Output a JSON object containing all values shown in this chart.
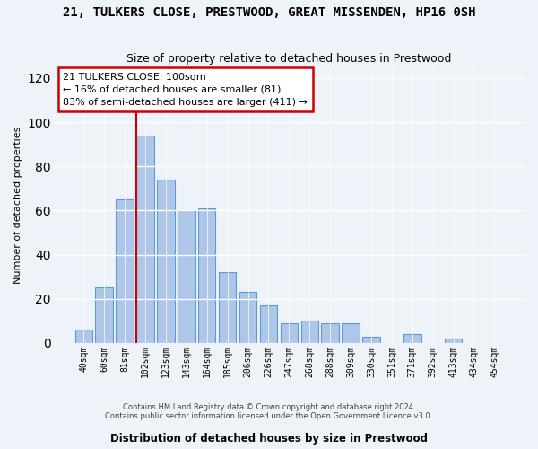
{
  "title": "21, TULKERS CLOSE, PRESTWOOD, GREAT MISSENDEN, HP16 0SH",
  "subtitle": "Size of property relative to detached houses in Prestwood",
  "xlabel": "Distribution of detached houses by size in Prestwood",
  "ylabel": "Number of detached properties",
  "bar_color": "#aec6e8",
  "bar_edge_color": "#5b9bd5",
  "background_color": "#eef2f9",
  "grid_color": "white",
  "categories": [
    "40sqm",
    "60sqm",
    "81sqm",
    "102sqm",
    "123sqm",
    "143sqm",
    "164sqm",
    "185sqm",
    "206sqm",
    "226sqm",
    "247sqm",
    "268sqm",
    "288sqm",
    "309sqm",
    "330sqm",
    "351sqm",
    "371sqm",
    "392sqm",
    "413sqm",
    "434sqm",
    "454sqm"
  ],
  "values": [
    6,
    25,
    65,
    94,
    74,
    60,
    61,
    32,
    23,
    17,
    9,
    10,
    9,
    9,
    3,
    0,
    4,
    0,
    2,
    0,
    0
  ],
  "vline_index": 3,
  "vline_color": "#cc0000",
  "annotation_line1": "21 TULKERS CLOSE: 100sqm",
  "annotation_line2": "← 16% of detached houses are smaller (81)",
  "annotation_line3": "83% of semi-detached houses are larger (411) →",
  "annotation_box_color": "white",
  "annotation_box_edge": "#cc0000",
  "footer_line1": "Contains HM Land Registry data © Crown copyright and database right 2024.",
  "footer_line2": "Contains public sector information licensed under the Open Government Licence v3.0.",
  "ylim": [
    0,
    125
  ],
  "yticks": [
    0,
    20,
    40,
    60,
    80,
    100,
    120
  ]
}
